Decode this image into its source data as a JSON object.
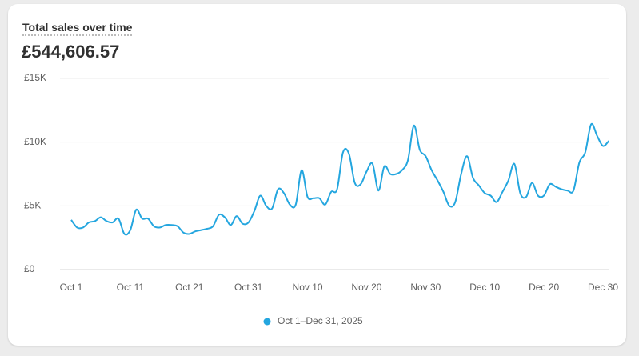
{
  "header": {
    "title": "Total sales over time",
    "total": "£544,606.57"
  },
  "chart_data": {
    "type": "line",
    "categories": [
      "Oct 1",
      null,
      null,
      null,
      null,
      null,
      null,
      null,
      null,
      null,
      "Oct 11",
      null,
      null,
      null,
      null,
      null,
      null,
      null,
      null,
      null,
      "Oct 21",
      null,
      null,
      null,
      null,
      null,
      null,
      null,
      null,
      null,
      "Oct 31",
      null,
      null,
      null,
      null,
      null,
      null,
      null,
      null,
      null,
      "Nov 10",
      null,
      null,
      null,
      null,
      null,
      null,
      null,
      null,
      null,
      "Nov 20",
      null,
      null,
      null,
      null,
      null,
      null,
      null,
      null,
      null,
      "Nov 30",
      null,
      null,
      null,
      null,
      null,
      null,
      null,
      null,
      null,
      "Dec 10",
      null,
      null,
      null,
      null,
      null,
      null,
      null,
      null,
      null,
      "Dec 20",
      null,
      null,
      null,
      null,
      null,
      null,
      null,
      null,
      null,
      "Dec 30",
      null
    ],
    "series": [
      {
        "name": "Oct 1–Dec 31, 2025",
        "color": "#24a6df",
        "values": [
          3900,
          3300,
          3300,
          3700,
          3800,
          4100,
          3800,
          3700,
          4000,
          2800,
          3100,
          4700,
          4000,
          4000,
          3400,
          3300,
          3500,
          3500,
          3400,
          2900,
          2800,
          3000,
          3100,
          3200,
          3400,
          4300,
          4100,
          3500,
          4200,
          3600,
          3700,
          4600,
          5800,
          5000,
          4800,
          6300,
          6000,
          5100,
          5100,
          7800,
          5700,
          5600,
          5600,
          5100,
          6100,
          6300,
          9200,
          9100,
          6800,
          6700,
          7700,
          8300,
          6200,
          8100,
          7500,
          7500,
          7800,
          8600,
          11300,
          9400,
          8900,
          7800,
          7000,
          6100,
          5000,
          5300,
          7500,
          8900,
          7200,
          6600,
          6000,
          5800,
          5300,
          6100,
          7000,
          8300,
          6000,
          5700,
          6800,
          5800,
          5800,
          6700,
          6500,
          6300,
          6200,
          6200,
          8400,
          9200,
          11400,
          10500,
          9700,
          10100
        ]
      }
    ],
    "ylim": [
      0,
      15000
    ],
    "yticks": [
      {
        "value": 0,
        "label": "£0"
      },
      {
        "value": 5000,
        "label": "£5K"
      },
      {
        "value": 10000,
        "label": "£10K"
      },
      {
        "value": 15000,
        "label": "£15K"
      }
    ],
    "grid": true
  }
}
